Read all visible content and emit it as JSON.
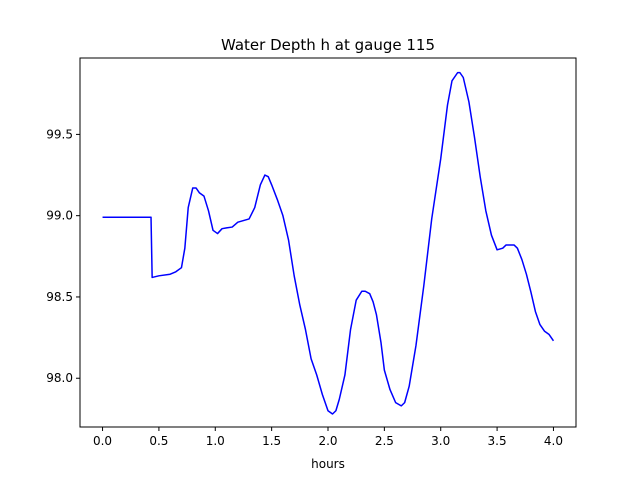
{
  "chart_data": {
    "type": "line",
    "title": "Water Depth h at gauge 115",
    "xlabel": "hours",
    "ylabel": "",
    "xlim": [
      -0.2,
      4.2
    ],
    "ylim": [
      97.7,
      99.97
    ],
    "xticks": [
      0.0,
      0.5,
      1.0,
      1.5,
      2.0,
      2.5,
      3.0,
      3.5,
      4.0
    ],
    "xtick_labels": [
      "0.0",
      "0.5",
      "1.0",
      "1.5",
      "2.0",
      "2.5",
      "3.0",
      "3.5",
      "4.0"
    ],
    "yticks": [
      98.0,
      98.5,
      99.0,
      99.5
    ],
    "ytick_labels": [
      "98.0",
      "98.5",
      "99.0",
      "99.5"
    ],
    "grid": false,
    "series": [
      {
        "color": "#0000ff",
        "x": [
          0.0,
          0.2,
          0.42,
          0.43,
          0.44,
          0.5,
          0.6,
          0.65,
          0.7,
          0.73,
          0.76,
          0.8,
          0.83,
          0.86,
          0.9,
          0.94,
          0.98,
          1.02,
          1.06,
          1.1,
          1.15,
          1.2,
          1.25,
          1.3,
          1.35,
          1.4,
          1.44,
          1.47,
          1.5,
          1.55,
          1.6,
          1.65,
          1.7,
          1.75,
          1.8,
          1.85,
          1.9,
          1.95,
          2.0,
          2.04,
          2.07,
          2.1,
          2.15,
          2.2,
          2.25,
          2.3,
          2.33,
          2.37,
          2.4,
          2.43,
          2.47,
          2.5,
          2.55,
          2.6,
          2.65,
          2.68,
          2.72,
          2.78,
          2.85,
          2.92,
          3.0,
          3.06,
          3.1,
          3.15,
          3.17,
          3.2,
          3.25,
          3.3,
          3.35,
          3.4,
          3.45,
          3.5,
          3.55,
          3.58,
          3.62,
          3.65,
          3.68,
          3.72,
          3.76,
          3.8,
          3.84,
          3.88,
          3.92,
          3.96,
          4.0
        ],
        "y": [
          98.99,
          98.99,
          98.99,
          98.99,
          98.62,
          98.63,
          98.64,
          98.655,
          98.68,
          98.8,
          99.05,
          99.17,
          99.17,
          99.14,
          99.12,
          99.03,
          98.91,
          98.89,
          98.92,
          98.925,
          98.93,
          98.96,
          98.97,
          98.98,
          99.05,
          99.19,
          99.25,
          99.24,
          99.19,
          99.1,
          99.0,
          98.85,
          98.63,
          98.45,
          98.3,
          98.12,
          98.02,
          97.9,
          97.8,
          97.78,
          97.8,
          97.87,
          98.02,
          98.3,
          98.48,
          98.535,
          98.535,
          98.52,
          98.47,
          98.39,
          98.22,
          98.05,
          97.93,
          97.85,
          97.83,
          97.85,
          97.95,
          98.2,
          98.57,
          98.98,
          99.35,
          99.68,
          99.83,
          99.88,
          99.88,
          99.85,
          99.7,
          99.48,
          99.24,
          99.03,
          98.88,
          98.79,
          98.8,
          98.82,
          98.82,
          98.82,
          98.8,
          98.73,
          98.64,
          98.53,
          98.41,
          98.33,
          98.29,
          98.27,
          98.23
        ]
      }
    ]
  }
}
